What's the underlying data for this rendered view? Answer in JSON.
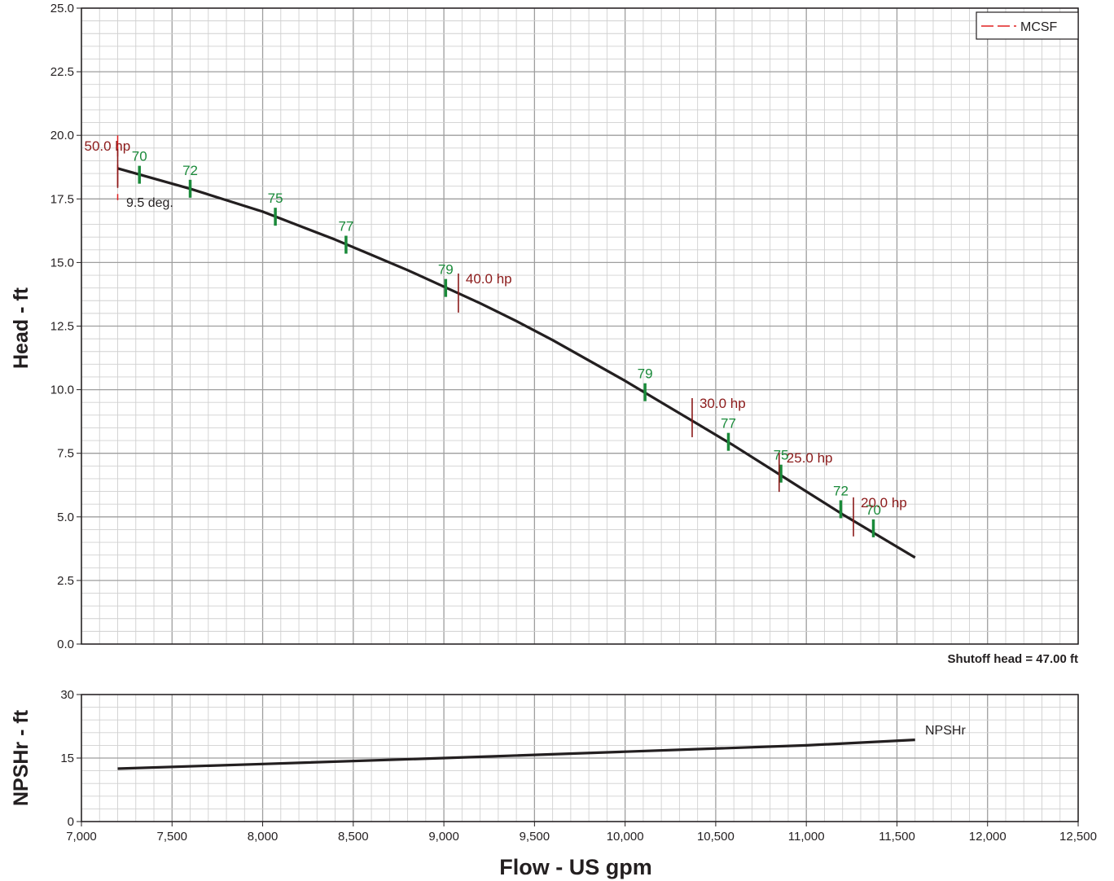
{
  "chart_data": [
    {
      "type": "line",
      "name": "head-chart",
      "xlabel": "Flow - US gpm",
      "ylabel": "Head - ft",
      "xlim": [
        7000,
        12500
      ],
      "ylim": [
        0,
        25
      ],
      "x_ticks": [
        "7,000",
        "7,500",
        "8,000",
        "8,500",
        "9,000",
        "9,500",
        "10,000",
        "10,500",
        "11,000",
        "11,500",
        "12,000",
        "12,500"
      ],
      "y_ticks": [
        "0.0",
        "2.5",
        "5.0",
        "7.5",
        "10.0",
        "12.5",
        "15.0",
        "17.5",
        "20.0",
        "22.5",
        "25.0"
      ],
      "grid": true,
      "legend": {
        "position": "top-right",
        "entries": [
          "MCSF"
        ]
      },
      "mcsf_flow": 7200,
      "diameter_label": "9.5 deg.",
      "shutoff_note": "Shutoff head = 47.00 ft",
      "head_curve": {
        "x": [
          7200,
          7400,
          7600,
          7800,
          8000,
          8200,
          8400,
          8600,
          8800,
          9000,
          9200,
          9400,
          9600,
          9800,
          10000,
          10200,
          10400,
          10600,
          10800,
          11000,
          11200,
          11400,
          11600
        ],
        "y": [
          18.7,
          18.3,
          17.9,
          17.45,
          17.0,
          16.45,
          15.9,
          15.3,
          14.7,
          14.05,
          13.4,
          12.7,
          11.95,
          11.15,
          10.35,
          9.5,
          8.65,
          7.8,
          6.9,
          6.0,
          5.1,
          4.25,
          3.4
        ]
      },
      "efficiency_marks": [
        {
          "label": "70",
          "x": 7320,
          "y": 18.45
        },
        {
          "label": "72",
          "x": 7600,
          "y": 17.9
        },
        {
          "label": "75",
          "x": 8070,
          "y": 16.8
        },
        {
          "label": "77",
          "x": 8460,
          "y": 15.7
        },
        {
          "label": "79",
          "x": 9010,
          "y": 14.0
        },
        {
          "label": "79",
          "x": 10110,
          "y": 9.9
        },
        {
          "label": "77",
          "x": 10570,
          "y": 7.95
        },
        {
          "label": "75",
          "x": 10860,
          "y": 6.7
        },
        {
          "label": "72",
          "x": 11190,
          "y": 5.3
        },
        {
          "label": "70",
          "x": 11370,
          "y": 4.55
        }
      ],
      "power_marks": [
        {
          "label": "50.0 hp",
          "x": 7200,
          "y": 18.7
        },
        {
          "label": "40.0 hp",
          "x": 9080,
          "y": 13.8
        },
        {
          "label": "30.0 hp",
          "x": 10370,
          "y": 8.9
        },
        {
          "label": "25.0 hp",
          "x": 10850,
          "y": 6.75
        },
        {
          "label": "20.0 hp",
          "x": 11260,
          "y": 5.0
        }
      ]
    },
    {
      "type": "line",
      "name": "npshr-chart",
      "xlabel": "Flow - US gpm",
      "ylabel": "NPSHr - ft",
      "xlim": [
        7000,
        12500
      ],
      "ylim": [
        0,
        30
      ],
      "y_ticks": [
        "0",
        "15",
        "30"
      ],
      "grid": true,
      "series": [
        {
          "name": "NPSHr",
          "x": [
            7200,
            8000,
            9000,
            10000,
            11000,
            11600
          ],
          "y": [
            12.5,
            13.6,
            15.0,
            16.5,
            18.0,
            19.3
          ]
        }
      ]
    }
  ],
  "colors": {
    "curve": "#231f20",
    "efficiency": "#1a8a3a",
    "power": "#8b1a1a",
    "mcsf": "#e02020",
    "grid_major": "#9e9e9e",
    "grid_minor": "#d0d0d0"
  }
}
